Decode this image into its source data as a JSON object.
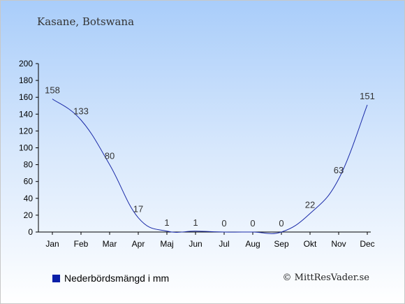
{
  "header": {
    "location": "Kasane, Botswana"
  },
  "legend": {
    "label": "Nederbördsmängd i mm",
    "color": "#0a1fa8"
  },
  "credit": "© MittResVader.se",
  "chart_data": {
    "type": "line",
    "title": "Kasane, Botswana",
    "xlabel": "",
    "ylabel": "",
    "categories": [
      "Jan",
      "Feb",
      "Mar",
      "Apr",
      "Maj",
      "Jun",
      "Jul",
      "Aug",
      "Sep",
      "Okt",
      "Nov",
      "Dec"
    ],
    "series": [
      {
        "name": "Nederbördsmängd i mm",
        "values": [
          158,
          133,
          80,
          17,
          1,
          1,
          0,
          0,
          0,
          22,
          63,
          151
        ],
        "color": "#1a2aa8"
      }
    ],
    "ylim": [
      0,
      200
    ],
    "yticks": [
      0,
      20,
      40,
      60,
      80,
      100,
      120,
      140,
      160,
      180,
      200
    ],
    "grid": false,
    "legend_position": "bottom-left"
  }
}
